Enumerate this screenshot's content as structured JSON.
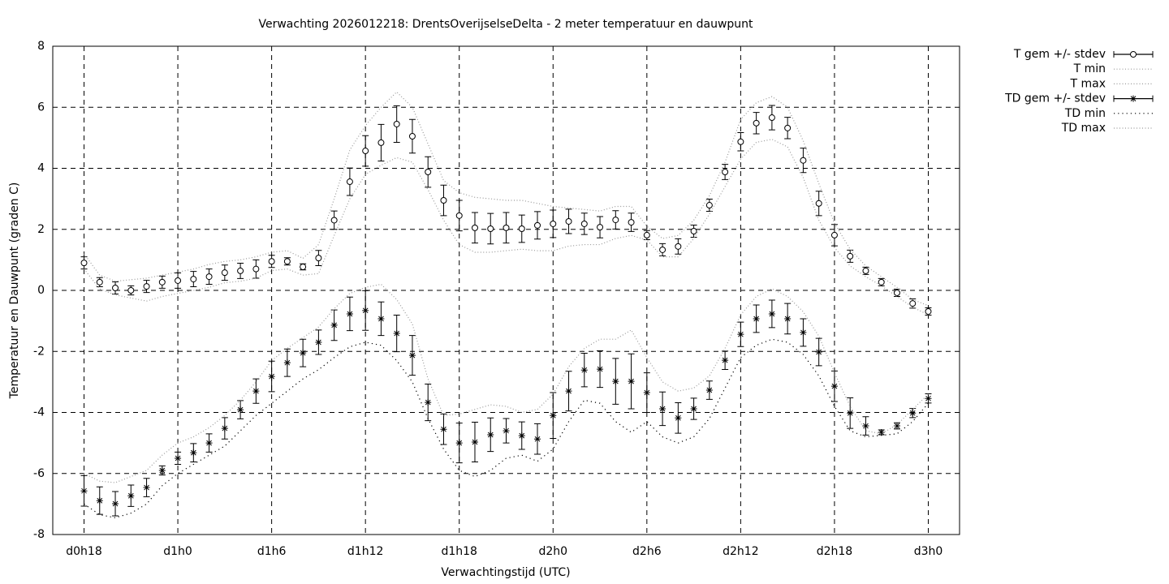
{
  "chart_data": {
    "type": "errorbar",
    "title": "Verwachting 2026012218: DrentsOverijselseDelta - 2 meter temperatuur en dauwpunt",
    "x_label": "Verwachtingstijd (UTC)",
    "y_label": "Temperatuur en Dauwpunt (graden C)",
    "x": [
      18,
      19,
      20,
      21,
      22,
      23,
      24,
      25,
      26,
      27,
      28,
      29,
      30,
      31,
      32,
      33,
      34,
      35,
      36,
      37,
      38,
      39,
      40,
      41,
      42,
      43,
      44,
      45,
      46,
      47,
      48,
      49,
      50,
      51,
      52,
      53,
      54,
      55,
      56,
      57,
      58,
      59,
      60,
      61,
      62,
      63,
      64,
      65,
      66,
      67,
      68,
      69,
      70,
      71,
      72
    ],
    "xlim": [
      16,
      74
    ],
    "xticks": [
      {
        "value": 18,
        "label": "d0h18"
      },
      {
        "value": 24,
        "label": "d1h0"
      },
      {
        "value": 30,
        "label": "d1h6"
      },
      {
        "value": 36,
        "label": "d1h12"
      },
      {
        "value": 42,
        "label": "d1h18"
      },
      {
        "value": 48,
        "label": "d2h0"
      },
      {
        "value": 54,
        "label": "d2h6"
      },
      {
        "value": 60,
        "label": "d2h12"
      },
      {
        "value": 66,
        "label": "d2h18"
      },
      {
        "value": 72,
        "label": "d3h0"
      }
    ],
    "ylim": [
      -8,
      8
    ],
    "yticks": [
      -8,
      -6,
      -4,
      -2,
      0,
      2,
      4,
      6,
      8
    ],
    "grid": true,
    "legend": "outside-right",
    "series": [
      {
        "name": "T gem +/- stdev",
        "color": "#000000",
        "marker": "circle",
        "values": [
          0.9,
          0.27,
          0.08,
          0.0,
          0.13,
          0.27,
          0.32,
          0.37,
          0.45,
          0.58,
          0.64,
          0.7,
          0.95,
          0.95,
          0.77,
          1.06,
          2.3,
          3.56,
          4.57,
          4.84,
          5.45,
          5.05,
          3.88,
          2.95,
          2.45,
          2.05,
          2.02,
          2.05,
          2.02,
          2.13,
          2.18,
          2.26,
          2.18,
          2.07,
          2.31,
          2.23,
          1.81,
          1.33,
          1.44,
          1.94,
          2.79,
          3.88,
          4.87,
          5.48,
          5.66,
          5.32,
          4.26,
          2.85,
          1.81,
          1.12,
          0.64,
          0.27,
          -0.08,
          -0.43,
          -0.69
        ],
        "error": [
          0.2,
          0.15,
          0.2,
          0.15,
          0.2,
          0.2,
          0.25,
          0.25,
          0.25,
          0.25,
          0.25,
          0.3,
          0.2,
          0.12,
          0.1,
          0.25,
          0.3,
          0.45,
          0.5,
          0.6,
          0.6,
          0.55,
          0.5,
          0.5,
          0.5,
          0.5,
          0.5,
          0.5,
          0.45,
          0.45,
          0.45,
          0.4,
          0.35,
          0.35,
          0.3,
          0.3,
          0.15,
          0.2,
          0.25,
          0.2,
          0.2,
          0.25,
          0.3,
          0.35,
          0.4,
          0.35,
          0.4,
          0.4,
          0.35,
          0.2,
          0.12,
          0.12,
          0.12,
          0.15,
          0.12
        ]
      },
      {
        "name": "T min",
        "color": "#999999",
        "dash": "dotted",
        "values": [
          0.7,
          0.05,
          -0.15,
          -0.25,
          -0.35,
          -0.2,
          -0.1,
          0.0,
          0.1,
          0.25,
          0.3,
          0.4,
          0.65,
          0.7,
          0.5,
          0.55,
          1.8,
          3.0,
          3.8,
          4.1,
          4.35,
          4.2,
          3.3,
          2.3,
          1.5,
          1.25,
          1.25,
          1.3,
          1.35,
          1.3,
          1.3,
          1.45,
          1.5,
          1.5,
          1.7,
          1.8,
          1.65,
          1.1,
          1.1,
          1.7,
          2.5,
          3.4,
          4.3,
          4.85,
          4.95,
          4.7,
          3.7,
          2.3,
          1.4,
          0.8,
          0.45,
          0.15,
          -0.2,
          -0.55,
          -0.8
        ]
      },
      {
        "name": "T max",
        "color": "#999999",
        "dash": "dotted",
        "values": [
          1.2,
          0.5,
          0.3,
          0.35,
          0.4,
          0.5,
          0.6,
          0.7,
          0.85,
          0.95,
          1.0,
          1.1,
          1.25,
          1.3,
          1.05,
          1.5,
          3.0,
          4.6,
          5.4,
          6.0,
          6.5,
          6.0,
          4.8,
          3.6,
          3.2,
          3.05,
          3.0,
          2.95,
          2.95,
          2.85,
          2.75,
          2.7,
          2.65,
          2.6,
          2.75,
          2.75,
          2.1,
          1.7,
          1.8,
          2.3,
          3.1,
          4.2,
          5.6,
          6.15,
          6.35,
          6.0,
          4.9,
          3.5,
          2.2,
          1.35,
          0.8,
          0.45,
          0.1,
          -0.3,
          -0.5
        ]
      },
      {
        "name": "TD gem +/- stdev",
        "color": "#000000",
        "marker": "star",
        "values": [
          -6.57,
          -6.89,
          -6.99,
          -6.73,
          -6.46,
          -5.9,
          -5.5,
          -5.32,
          -5.0,
          -4.52,
          -3.91,
          -3.3,
          -2.82,
          -2.37,
          -2.05,
          -1.7,
          -1.14,
          -0.77,
          -0.66,
          -0.93,
          -1.41,
          -2.13,
          -3.67,
          -4.55,
          -5.0,
          -4.97,
          -4.73,
          -4.6,
          -4.76,
          -4.87,
          -4.1,
          -3.3,
          -2.61,
          -2.58,
          -2.98,
          -2.98,
          -3.35,
          -3.88,
          -4.18,
          -3.88,
          -3.27,
          -2.29,
          -1.44,
          -0.93,
          -0.77,
          -0.93,
          -1.38,
          -2.02,
          -3.14,
          -4.02,
          -4.44,
          -4.65,
          -4.44,
          -4.02,
          -3.54
        ],
        "error": [
          0.5,
          0.45,
          0.4,
          0.35,
          0.3,
          0.15,
          0.2,
          0.3,
          0.3,
          0.35,
          0.3,
          0.4,
          0.5,
          0.45,
          0.45,
          0.4,
          0.5,
          0.55,
          0.65,
          0.55,
          0.6,
          0.65,
          0.6,
          0.5,
          0.65,
          0.65,
          0.55,
          0.4,
          0.45,
          0.5,
          0.75,
          0.65,
          0.55,
          0.6,
          0.75,
          0.9,
          0.65,
          0.55,
          0.5,
          0.35,
          0.3,
          0.3,
          0.4,
          0.45,
          0.45,
          0.5,
          0.45,
          0.45,
          0.5,
          0.5,
          0.3,
          0.08,
          0.1,
          0.15,
          0.15
        ]
      },
      {
        "name": "TD min",
        "color": "#000000",
        "dash": "dotted",
        "values": [
          -7.0,
          -7.35,
          -7.45,
          -7.3,
          -7.0,
          -6.4,
          -6.0,
          -5.7,
          -5.4,
          -5.1,
          -4.6,
          -4.1,
          -3.7,
          -3.3,
          -2.9,
          -2.6,
          -2.2,
          -1.85,
          -1.7,
          -1.8,
          -2.3,
          -3.0,
          -4.2,
          -5.2,
          -5.9,
          -6.1,
          -5.9,
          -5.5,
          -5.4,
          -5.6,
          -5.2,
          -4.3,
          -3.6,
          -3.7,
          -4.3,
          -4.65,
          -4.3,
          -4.8,
          -5.0,
          -4.8,
          -4.2,
          -3.2,
          -2.2,
          -1.8,
          -1.6,
          -1.7,
          -2.1,
          -2.8,
          -3.8,
          -4.6,
          -4.8,
          -4.75,
          -4.7,
          -4.3,
          -3.7
        ]
      },
      {
        "name": "TD max",
        "color": "#999999",
        "dash": "dotted",
        "values": [
          -6.0,
          -6.25,
          -6.3,
          -6.1,
          -5.9,
          -5.4,
          -5.0,
          -4.8,
          -4.5,
          -4.1,
          -3.6,
          -3.0,
          -2.3,
          -1.9,
          -1.55,
          -1.2,
          -0.6,
          -0.1,
          0.1,
          0.2,
          -0.3,
          -1.1,
          -2.9,
          -4.1,
          -4.05,
          -3.9,
          -3.75,
          -3.8,
          -4.0,
          -3.9,
          -3.4,
          -2.5,
          -1.9,
          -1.6,
          -1.6,
          -1.3,
          -2.2,
          -3.0,
          -3.3,
          -3.2,
          -2.8,
          -1.9,
          -0.8,
          -0.2,
          0.05,
          -0.2,
          -0.7,
          -1.5,
          -2.7,
          -3.8,
          -4.6,
          -4.7,
          -4.4,
          -3.9,
          -3.4
        ]
      }
    ]
  }
}
